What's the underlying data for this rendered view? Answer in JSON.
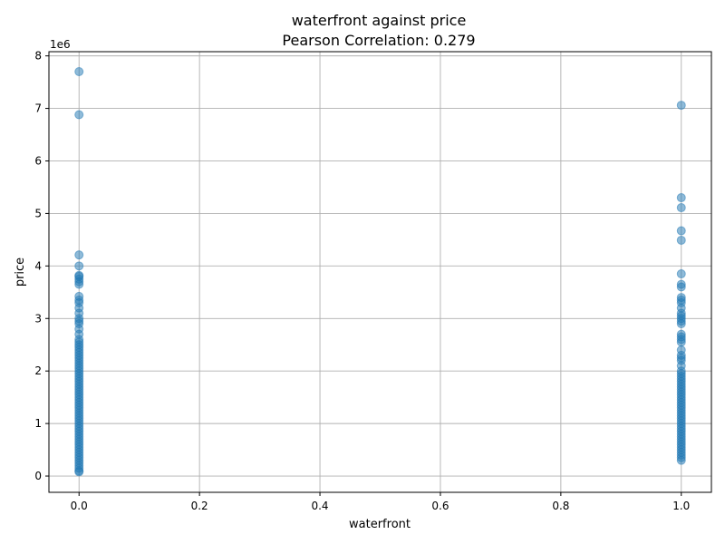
{
  "chart_data": {
    "type": "scatter",
    "title_line1": "waterfront against price",
    "title_line2": "Pearson Correlation: 0.279",
    "xlabel": "waterfront",
    "ylabel": "price",
    "y_offset_label": "1e6",
    "xlim": [
      -0.05,
      1.05
    ],
    "ylim": [
      -310000.0,
      8080000.0
    ],
    "x_ticks": [
      0.0,
      0.2,
      0.4,
      0.6,
      0.8,
      1.0
    ],
    "x_tick_labels": [
      "0.0",
      "0.2",
      "0.4",
      "0.6",
      "0.8",
      "1.0"
    ],
    "y_ticks": [
      0,
      1000000,
      2000000,
      3000000,
      4000000,
      5000000,
      6000000,
      7000000,
      8000000
    ],
    "y_tick_labels": [
      "0",
      "1",
      "2",
      "3",
      "4",
      "5",
      "6",
      "7",
      "8"
    ],
    "grid": true,
    "marker_color": "#1f77b4",
    "marker_alpha": 0.5,
    "series": [
      {
        "x_value": 0,
        "y": [
          7700000,
          6880000,
          4210000,
          4000000,
          3820000,
          3800000,
          3750000,
          3700000,
          3650000,
          3420000,
          3350000,
          3300000,
          3200000,
          3100000,
          3000000,
          2950000,
          2900000,
          2800000,
          2700000,
          2600000,
          2550000,
          2500000,
          2450000,
          2400000,
          2350000,
          2300000,
          2250000,
          2200000,
          2150000,
          2100000,
          2050000,
          2000000,
          1950000,
          1900000,
          1850000,
          1800000,
          1750000,
          1700000,
          1650000,
          1600000,
          1550000,
          1500000,
          1450000,
          1400000,
          1350000,
          1300000,
          1250000,
          1200000,
          1150000,
          1100000,
          1050000,
          1000000,
          950000,
          900000,
          850000,
          800000,
          750000,
          700000,
          650000,
          600000,
          550000,
          500000,
          450000,
          400000,
          350000,
          300000,
          250000,
          200000,
          150000,
          100000,
          80000
        ]
      },
      {
        "x_value": 1,
        "y": [
          7060000,
          5300000,
          5110000,
          4670000,
          4490000,
          3850000,
          3650000,
          3600000,
          3400000,
          3350000,
          3300000,
          3200000,
          3100000,
          3050000,
          3000000,
          2950000,
          2900000,
          2700000,
          2650000,
          2600000,
          2550000,
          2400000,
          2300000,
          2250000,
          2200000,
          2100000,
          2000000,
          1950000,
          1900000,
          1850000,
          1800000,
          1750000,
          1700000,
          1650000,
          1600000,
          1550000,
          1500000,
          1450000,
          1400000,
          1350000,
          1300000,
          1250000,
          1200000,
          1150000,
          1100000,
          1050000,
          1000000,
          950000,
          900000,
          850000,
          800000,
          750000,
          700000,
          650000,
          600000,
          550000,
          500000,
          450000,
          400000,
          350000,
          300000
        ]
      }
    ]
  }
}
